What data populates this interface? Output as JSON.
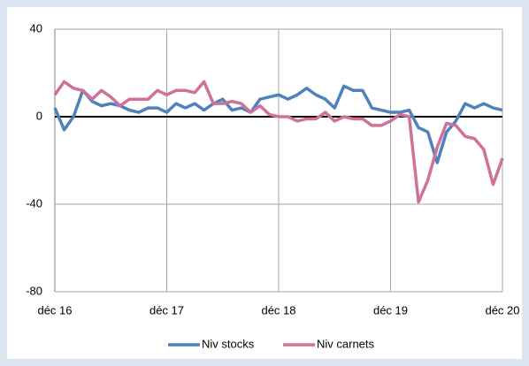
{
  "chart_data": {
    "type": "line",
    "categories": [
      "déc 16",
      null,
      null,
      null,
      null,
      null,
      null,
      null,
      null,
      null,
      null,
      null,
      "déc 17",
      null,
      null,
      null,
      null,
      null,
      null,
      null,
      null,
      null,
      null,
      null,
      "déc 18",
      null,
      null,
      null,
      null,
      null,
      null,
      null,
      null,
      null,
      null,
      null,
      "déc 19",
      null,
      null,
      null,
      null,
      null,
      null,
      null,
      null,
      null,
      null,
      null,
      "déc 20"
    ],
    "series": [
      {
        "name": "Niv stocks",
        "color": "#4f81bd",
        "values": [
          4,
          -6,
          0,
          12,
          7,
          5,
          6,
          5,
          3,
          2,
          4,
          4,
          2,
          6,
          4,
          6,
          3,
          6,
          8,
          3,
          4,
          2,
          8,
          9,
          10,
          8,
          10,
          13,
          10,
          8,
          4,
          14,
          12,
          12,
          4,
          3,
          2,
          2,
          3,
          -5,
          -7,
          -21,
          -7,
          -2,
          6,
          4,
          6,
          4,
          3
        ]
      },
      {
        "name": "Niv carnets",
        "color": "#d0719a",
        "values": [
          10,
          16,
          13,
          12,
          8,
          12,
          9,
          5,
          8,
          8,
          8,
          12,
          10,
          12,
          12,
          11,
          16,
          6,
          6,
          7,
          6,
          2,
          5,
          1,
          0,
          0,
          -2,
          -1,
          -1,
          2,
          -2,
          0,
          -1,
          -1,
          -4,
          -4,
          -2,
          1,
          0,
          -39,
          -29,
          -14,
          -3,
          -4,
          -9,
          -10,
          -15,
          -31,
          -19
        ]
      }
    ],
    "ylim": [
      -80,
      40
    ],
    "yticks": [
      -80,
      -40,
      0,
      40
    ],
    "grid": true,
    "legend": "bottom"
  }
}
